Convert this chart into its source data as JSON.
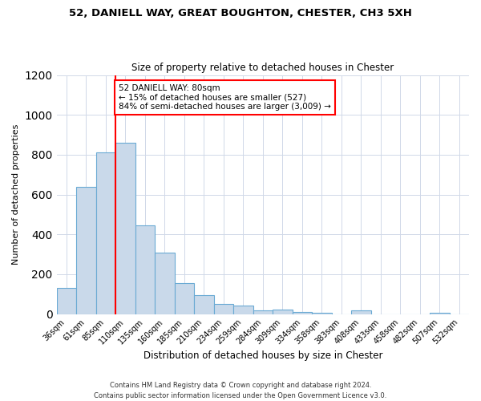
{
  "title": "52, DANIELL WAY, GREAT BOUGHTON, CHESTER, CH3 5XH",
  "subtitle": "Size of property relative to detached houses in Chester",
  "xlabel": "Distribution of detached houses by size in Chester",
  "ylabel": "Number of detached properties",
  "bar_color": "#c9d9ea",
  "bar_edge_color": "#6aaad4",
  "categories": [
    "36sqm",
    "61sqm",
    "85sqm",
    "110sqm",
    "135sqm",
    "160sqm",
    "185sqm",
    "210sqm",
    "234sqm",
    "259sqm",
    "284sqm",
    "309sqm",
    "334sqm",
    "358sqm",
    "383sqm",
    "408sqm",
    "433sqm",
    "458sqm",
    "482sqm",
    "507sqm",
    "532sqm"
  ],
  "values": [
    130,
    640,
    810,
    860,
    445,
    310,
    155,
    95,
    52,
    43,
    18,
    22,
    10,
    5,
    0,
    18,
    0,
    0,
    0,
    5,
    0
  ],
  "vline_x": 3.0,
  "marker_label": "52 DANIELL WAY: 80sqm",
  "annotation_line1": "← 15% of detached houses are smaller (527)",
  "annotation_line2": "84% of semi-detached houses are larger (3,009) →",
  "ylim": [
    0,
    1200
  ],
  "yticks": [
    0,
    200,
    400,
    600,
    800,
    1000,
    1200
  ],
  "footer1": "Contains HM Land Registry data © Crown copyright and database right 2024.",
  "footer2": "Contains public sector information licensed under the Open Government Licence v3.0."
}
